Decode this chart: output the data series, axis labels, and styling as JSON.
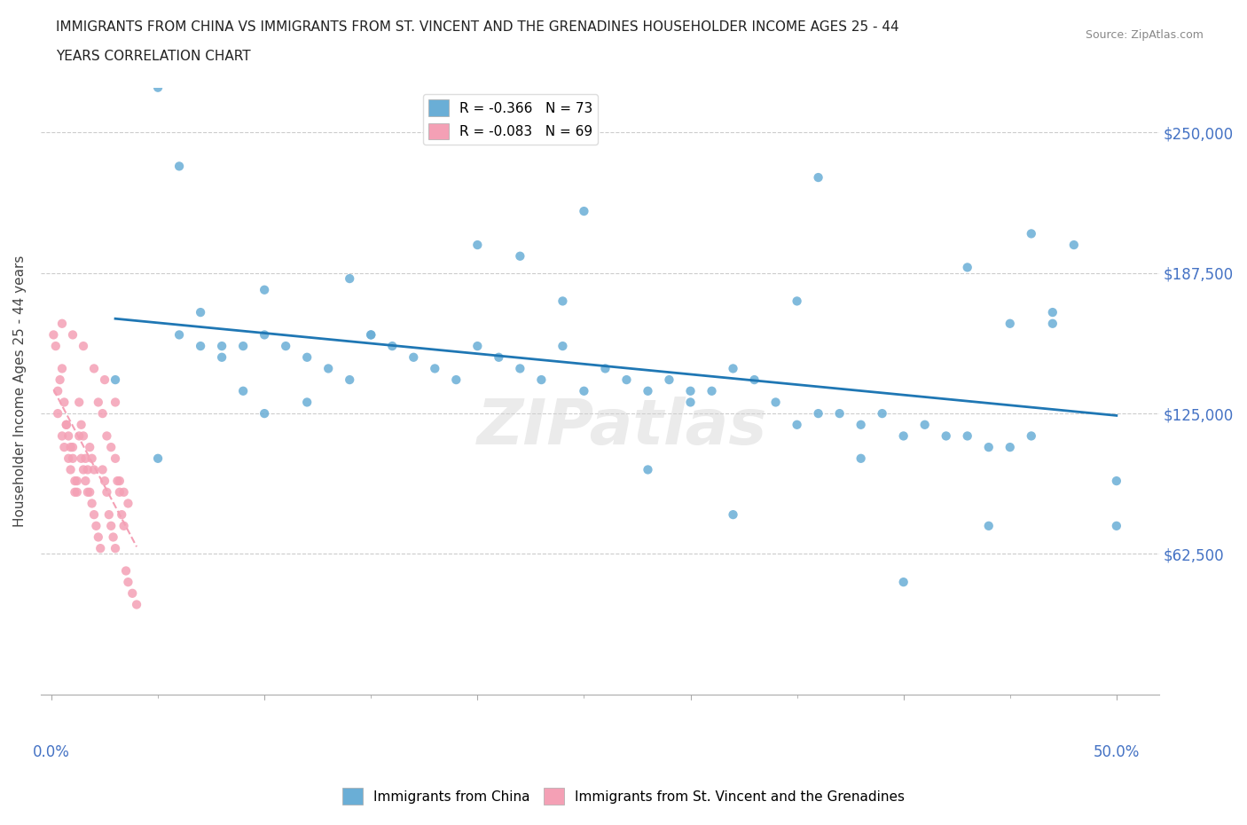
{
  "title_line1": "IMMIGRANTS FROM CHINA VS IMMIGRANTS FROM ST. VINCENT AND THE GRENADINES HOUSEHOLDER INCOME AGES 25 - 44",
  "title_line2": "YEARS CORRELATION CHART",
  "source": "Source: ZipAtlas.com",
  "ylabel": "Householder Income Ages 25 - 44 years",
  "yticks": [
    62500,
    125000,
    187500,
    250000
  ],
  "ytick_labels": [
    "$62,500",
    "$125,000",
    "$187,500",
    "$250,000"
  ],
  "xlim": [
    -0.005,
    0.52
  ],
  "ylim": [
    0,
    270000
  ],
  "watermark": "ZIPatlas",
  "legend_china": "R = -0.366   N = 73",
  "legend_svg": "R = -0.083   N = 69",
  "color_china": "#6aaed6",
  "color_svg": "#f4a0b5",
  "trendline_china_color": "#1f77b4",
  "trendline_svg_color": "#f4a0b5",
  "china_x": [
    0.03,
    0.05,
    0.06,
    0.07,
    0.08,
    0.09,
    0.1,
    0.11,
    0.12,
    0.13,
    0.14,
    0.15,
    0.16,
    0.17,
    0.18,
    0.19,
    0.2,
    0.21,
    0.22,
    0.23,
    0.24,
    0.25,
    0.26,
    0.27,
    0.28,
    0.29,
    0.3,
    0.31,
    0.32,
    0.33,
    0.34,
    0.35,
    0.36,
    0.37,
    0.38,
    0.39,
    0.4,
    0.41,
    0.42,
    0.43,
    0.44,
    0.45,
    0.46,
    0.47,
    0.48,
    0.5,
    0.06,
    0.07,
    0.08,
    0.09,
    0.1,
    0.12,
    0.15,
    0.25,
    0.35,
    0.36,
    0.43,
    0.46,
    0.47,
    0.2,
    0.22,
    0.38,
    0.4,
    0.45,
    0.3,
    0.1,
    0.05,
    0.14,
    0.24,
    0.28,
    0.32,
    0.44,
    0.5
  ],
  "china_y": [
    140000,
    105000,
    160000,
    155000,
    150000,
    155000,
    160000,
    155000,
    150000,
    145000,
    140000,
    160000,
    155000,
    150000,
    145000,
    140000,
    155000,
    150000,
    145000,
    140000,
    155000,
    135000,
    145000,
    140000,
    135000,
    140000,
    130000,
    135000,
    145000,
    140000,
    130000,
    120000,
    125000,
    125000,
    120000,
    125000,
    115000,
    120000,
    115000,
    115000,
    110000,
    110000,
    115000,
    170000,
    200000,
    75000,
    235000,
    170000,
    155000,
    135000,
    125000,
    130000,
    160000,
    215000,
    175000,
    230000,
    190000,
    205000,
    165000,
    200000,
    195000,
    105000,
    50000,
    165000,
    135000,
    180000,
    270000,
    185000,
    175000,
    100000,
    80000,
    75000,
    95000
  ],
  "svg_x": [
    0.003,
    0.005,
    0.006,
    0.007,
    0.008,
    0.009,
    0.01,
    0.011,
    0.012,
    0.013,
    0.014,
    0.015,
    0.016,
    0.017,
    0.018,
    0.019,
    0.02,
    0.022,
    0.024,
    0.026,
    0.028,
    0.03,
    0.032,
    0.034,
    0.036,
    0.003,
    0.004,
    0.005,
    0.006,
    0.007,
    0.008,
    0.009,
    0.01,
    0.011,
    0.012,
    0.013,
    0.014,
    0.015,
    0.016,
    0.017,
    0.018,
    0.019,
    0.02,
    0.021,
    0.022,
    0.023,
    0.024,
    0.025,
    0.026,
    0.027,
    0.028,
    0.029,
    0.03,
    0.031,
    0.032,
    0.033,
    0.034,
    0.035,
    0.036,
    0.038,
    0.04,
    0.002,
    0.001,
    0.015,
    0.02,
    0.025,
    0.03,
    0.01,
    0.005
  ],
  "svg_y": [
    125000,
    115000,
    110000,
    120000,
    105000,
    100000,
    110000,
    90000,
    95000,
    115000,
    105000,
    100000,
    95000,
    90000,
    110000,
    105000,
    100000,
    130000,
    125000,
    115000,
    110000,
    105000,
    95000,
    90000,
    85000,
    135000,
    140000,
    145000,
    130000,
    120000,
    115000,
    110000,
    105000,
    95000,
    90000,
    130000,
    120000,
    115000,
    105000,
    100000,
    90000,
    85000,
    80000,
    75000,
    70000,
    65000,
    100000,
    95000,
    90000,
    80000,
    75000,
    70000,
    65000,
    95000,
    90000,
    80000,
    75000,
    55000,
    50000,
    45000,
    40000,
    155000,
    160000,
    155000,
    145000,
    140000,
    130000,
    160000,
    165000
  ]
}
